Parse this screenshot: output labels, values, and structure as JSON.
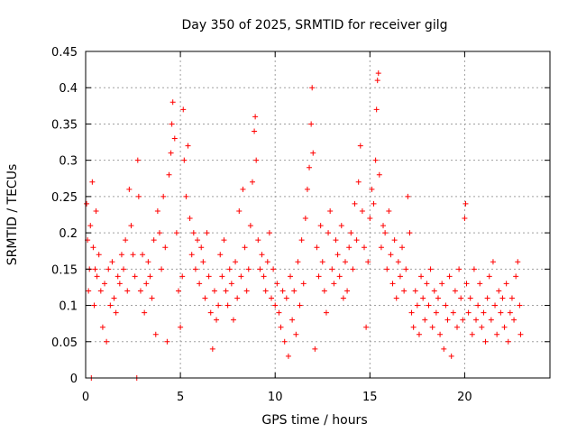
{
  "chart_data": {
    "type": "scatter",
    "title": "Day 350 of 2025, SRMTID for receiver gilg",
    "xlabel": "GPS time / hours",
    "ylabel": "SRMTID / TECUs",
    "xlim": [
      0,
      24.5
    ],
    "ylim": [
      0,
      0.45
    ],
    "xticks": [
      0,
      5,
      10,
      15,
      20
    ],
    "xtick_labels": [
      "0",
      "5",
      "10",
      "15",
      "20"
    ],
    "yticks": [
      0,
      0.05,
      0.1,
      0.15,
      0.2,
      0.25,
      0.3,
      0.35,
      0.4,
      0.45
    ],
    "ytick_labels": [
      "0",
      "0.05",
      "0.1",
      "0.15",
      "0.2",
      "0.25",
      "0.3",
      "0.35",
      "0.4",
      "0.45"
    ],
    "grid": true,
    "marker": "plus",
    "series": [
      {
        "name": "SRMTID",
        "color": "#ff0000",
        "points": [
          [
            0.05,
            0.24
          ],
          [
            0.1,
            0.19
          ],
          [
            0.15,
            0.12
          ],
          [
            0.2,
            0.15
          ],
          [
            0.25,
            0.21
          ],
          [
            0.3,
            0.0
          ],
          [
            0.35,
            0.27
          ],
          [
            0.4,
            0.18
          ],
          [
            0.45,
            0.1
          ],
          [
            0.5,
            0.15
          ],
          [
            0.55,
            0.23
          ],
          [
            0.6,
            0.14
          ],
          [
            0.7,
            0.17
          ],
          [
            0.8,
            0.12
          ],
          [
            0.9,
            0.07
          ],
          [
            1.0,
            0.13
          ],
          [
            1.1,
            0.05
          ],
          [
            1.2,
            0.15
          ],
          [
            1.3,
            0.1
          ],
          [
            1.4,
            0.16
          ],
          [
            1.5,
            0.11
          ],
          [
            1.6,
            0.09
          ],
          [
            1.7,
            0.14
          ],
          [
            1.8,
            0.13
          ],
          [
            1.9,
            0.17
          ],
          [
            2.0,
            0.15
          ],
          [
            2.1,
            0.19
          ],
          [
            2.2,
            0.12
          ],
          [
            2.3,
            0.26
          ],
          [
            2.4,
            0.21
          ],
          [
            2.5,
            0.17
          ],
          [
            2.6,
            0.14
          ],
          [
            2.7,
            0.0
          ],
          [
            2.75,
            0.3
          ],
          [
            2.8,
            0.25
          ],
          [
            2.9,
            0.12
          ],
          [
            3.0,
            0.17
          ],
          [
            3.1,
            0.09
          ],
          [
            3.2,
            0.13
          ],
          [
            3.3,
            0.16
          ],
          [
            3.4,
            0.14
          ],
          [
            3.5,
            0.11
          ],
          [
            3.6,
            0.19
          ],
          [
            3.7,
            0.06
          ],
          [
            3.8,
            0.23
          ],
          [
            3.9,
            0.2
          ],
          [
            4.0,
            0.15
          ],
          [
            4.1,
            0.25
          ],
          [
            4.2,
            0.18
          ],
          [
            4.3,
            0.05
          ],
          [
            4.4,
            0.28
          ],
          [
            4.5,
            0.31
          ],
          [
            4.55,
            0.35
          ],
          [
            4.6,
            0.38
          ],
          [
            4.7,
            0.33
          ],
          [
            4.8,
            0.2
          ],
          [
            4.9,
            0.12
          ],
          [
            5.0,
            0.07
          ],
          [
            5.1,
            0.14
          ],
          [
            5.15,
            0.37
          ],
          [
            5.2,
            0.3
          ],
          [
            5.3,
            0.25
          ],
          [
            5.4,
            0.32
          ],
          [
            5.5,
            0.22
          ],
          [
            5.6,
            0.17
          ],
          [
            5.7,
            0.2
          ],
          [
            5.8,
            0.15
          ],
          [
            5.9,
            0.19
          ],
          [
            6.0,
            0.13
          ],
          [
            6.1,
            0.18
          ],
          [
            6.2,
            0.16
          ],
          [
            6.3,
            0.11
          ],
          [
            6.4,
            0.2
          ],
          [
            6.5,
            0.14
          ],
          [
            6.6,
            0.09
          ],
          [
            6.7,
            0.04
          ],
          [
            6.8,
            0.12
          ],
          [
            6.9,
            0.08
          ],
          [
            7.0,
            0.1
          ],
          [
            7.1,
            0.17
          ],
          [
            7.2,
            0.14
          ],
          [
            7.3,
            0.19
          ],
          [
            7.4,
            0.12
          ],
          [
            7.5,
            0.1
          ],
          [
            7.6,
            0.15
          ],
          [
            7.7,
            0.13
          ],
          [
            7.8,
            0.08
          ],
          [
            7.9,
            0.16
          ],
          [
            8.0,
            0.11
          ],
          [
            8.1,
            0.23
          ],
          [
            8.2,
            0.14
          ],
          [
            8.3,
            0.26
          ],
          [
            8.4,
            0.18
          ],
          [
            8.5,
            0.12
          ],
          [
            8.6,
            0.15
          ],
          [
            8.7,
            0.21
          ],
          [
            8.8,
            0.27
          ],
          [
            8.9,
            0.34
          ],
          [
            8.95,
            0.36
          ],
          [
            9.0,
            0.3
          ],
          [
            9.1,
            0.19
          ],
          [
            9.2,
            0.15
          ],
          [
            9.3,
            0.17
          ],
          [
            9.4,
            0.14
          ],
          [
            9.5,
            0.12
          ],
          [
            9.6,
            0.16
          ],
          [
            9.7,
            0.2
          ],
          [
            9.8,
            0.11
          ],
          [
            9.9,
            0.15
          ],
          [
            10.0,
            0.1
          ],
          [
            10.1,
            0.13
          ],
          [
            10.2,
            0.09
          ],
          [
            10.3,
            0.07
          ],
          [
            10.4,
            0.12
          ],
          [
            10.5,
            0.05
          ],
          [
            10.6,
            0.11
          ],
          [
            10.7,
            0.03
          ],
          [
            10.8,
            0.14
          ],
          [
            10.9,
            0.08
          ],
          [
            11.0,
            0.12
          ],
          [
            11.1,
            0.06
          ],
          [
            11.2,
            0.16
          ],
          [
            11.3,
            0.1
          ],
          [
            11.4,
            0.19
          ],
          [
            11.5,
            0.13
          ],
          [
            11.6,
            0.22
          ],
          [
            11.7,
            0.26
          ],
          [
            11.8,
            0.29
          ],
          [
            11.9,
            0.35
          ],
          [
            11.95,
            0.4
          ],
          [
            12.0,
            0.31
          ],
          [
            12.1,
            0.04
          ],
          [
            12.2,
            0.18
          ],
          [
            12.3,
            0.14
          ],
          [
            12.4,
            0.21
          ],
          [
            12.5,
            0.16
          ],
          [
            12.6,
            0.12
          ],
          [
            12.7,
            0.09
          ],
          [
            12.8,
            0.2
          ],
          [
            12.9,
            0.23
          ],
          [
            13.0,
            0.15
          ],
          [
            13.1,
            0.13
          ],
          [
            13.2,
            0.19
          ],
          [
            13.3,
            0.17
          ],
          [
            13.4,
            0.14
          ],
          [
            13.5,
            0.21
          ],
          [
            13.6,
            0.11
          ],
          [
            13.7,
            0.16
          ],
          [
            13.8,
            0.12
          ],
          [
            13.9,
            0.18
          ],
          [
            14.0,
            0.2
          ],
          [
            14.1,
            0.15
          ],
          [
            14.2,
            0.24
          ],
          [
            14.3,
            0.19
          ],
          [
            14.4,
            0.27
          ],
          [
            14.5,
            0.32
          ],
          [
            14.6,
            0.23
          ],
          [
            14.7,
            0.18
          ],
          [
            14.8,
            0.07
          ],
          [
            14.9,
            0.16
          ],
          [
            15.0,
            0.22
          ],
          [
            15.1,
            0.26
          ],
          [
            15.2,
            0.24
          ],
          [
            15.3,
            0.3
          ],
          [
            15.35,
            0.37
          ],
          [
            15.4,
            0.41
          ],
          [
            15.45,
            0.42
          ],
          [
            15.5,
            0.28
          ],
          [
            15.6,
            0.18
          ],
          [
            15.7,
            0.21
          ],
          [
            15.8,
            0.2
          ],
          [
            15.9,
            0.15
          ],
          [
            16.0,
            0.23
          ],
          [
            16.1,
            0.17
          ],
          [
            16.2,
            0.13
          ],
          [
            16.3,
            0.19
          ],
          [
            16.4,
            0.11
          ],
          [
            16.5,
            0.16
          ],
          [
            16.6,
            0.14
          ],
          [
            16.7,
            0.18
          ],
          [
            16.8,
            0.12
          ],
          [
            16.9,
            0.15
          ],
          [
            17.0,
            0.25
          ],
          [
            17.1,
            0.2
          ],
          [
            17.2,
            0.09
          ],
          [
            17.3,
            0.07
          ],
          [
            17.4,
            0.12
          ],
          [
            17.5,
            0.1
          ],
          [
            17.6,
            0.06
          ],
          [
            17.7,
            0.14
          ],
          [
            17.8,
            0.11
          ],
          [
            17.9,
            0.08
          ],
          [
            18.0,
            0.13
          ],
          [
            18.1,
            0.1
          ],
          [
            18.2,
            0.15
          ],
          [
            18.3,
            0.07
          ],
          [
            18.4,
            0.12
          ],
          [
            18.5,
            0.09
          ],
          [
            18.6,
            0.11
          ],
          [
            18.7,
            0.06
          ],
          [
            18.8,
            0.13
          ],
          [
            18.9,
            0.04
          ],
          [
            19.0,
            0.1
          ],
          [
            19.1,
            0.08
          ],
          [
            19.2,
            0.14
          ],
          [
            19.3,
            0.03
          ],
          [
            19.4,
            0.09
          ],
          [
            19.5,
            0.12
          ],
          [
            19.6,
            0.07
          ],
          [
            19.7,
            0.15
          ],
          [
            19.8,
            0.11
          ],
          [
            19.9,
            0.08
          ],
          [
            20.0,
            0.22
          ],
          [
            20.05,
            0.24
          ],
          [
            20.1,
            0.13
          ],
          [
            20.2,
            0.09
          ],
          [
            20.3,
            0.11
          ],
          [
            20.4,
            0.06
          ],
          [
            20.5,
            0.15
          ],
          [
            20.6,
            0.08
          ],
          [
            20.7,
            0.1
          ],
          [
            20.8,
            0.13
          ],
          [
            20.9,
            0.07
          ],
          [
            21.0,
            0.09
          ],
          [
            21.1,
            0.05
          ],
          [
            21.2,
            0.11
          ],
          [
            21.3,
            0.14
          ],
          [
            21.4,
            0.08
          ],
          [
            21.5,
            0.16
          ],
          [
            21.6,
            0.1
          ],
          [
            21.7,
            0.06
          ],
          [
            21.8,
            0.12
          ],
          [
            21.9,
            0.09
          ],
          [
            22.0,
            0.11
          ],
          [
            22.1,
            0.07
          ],
          [
            22.2,
            0.13
          ],
          [
            22.3,
            0.05
          ],
          [
            22.4,
            0.09
          ],
          [
            22.5,
            0.11
          ],
          [
            22.6,
            0.08
          ],
          [
            22.7,
            0.14
          ],
          [
            22.8,
            0.16
          ],
          [
            22.9,
            0.1
          ],
          [
            22.95,
            0.06
          ]
        ]
      }
    ]
  }
}
